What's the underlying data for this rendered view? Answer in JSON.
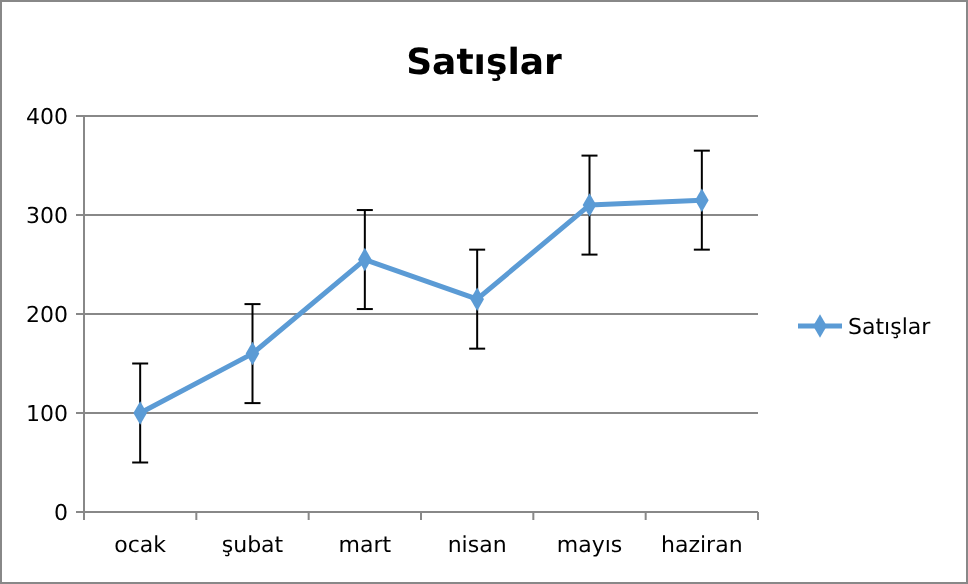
{
  "chart_data": {
    "type": "line",
    "title": "Satışlar",
    "categories": [
      "ocak",
      "şubat",
      "mart",
      "nisan",
      "mayıs",
      "haziran"
    ],
    "series": [
      {
        "name": "Satışlar",
        "color": "#5b9bd5",
        "values": [
          100,
          160,
          255,
          215,
          310,
          315
        ],
        "errors": [
          50,
          50,
          50,
          50,
          50,
          50
        ]
      }
    ],
    "ylim": [
      0,
      400
    ],
    "yticks": [
      0,
      100,
      200,
      300,
      400
    ],
    "grid": "y",
    "legend": "right",
    "marker": "diamond"
  }
}
